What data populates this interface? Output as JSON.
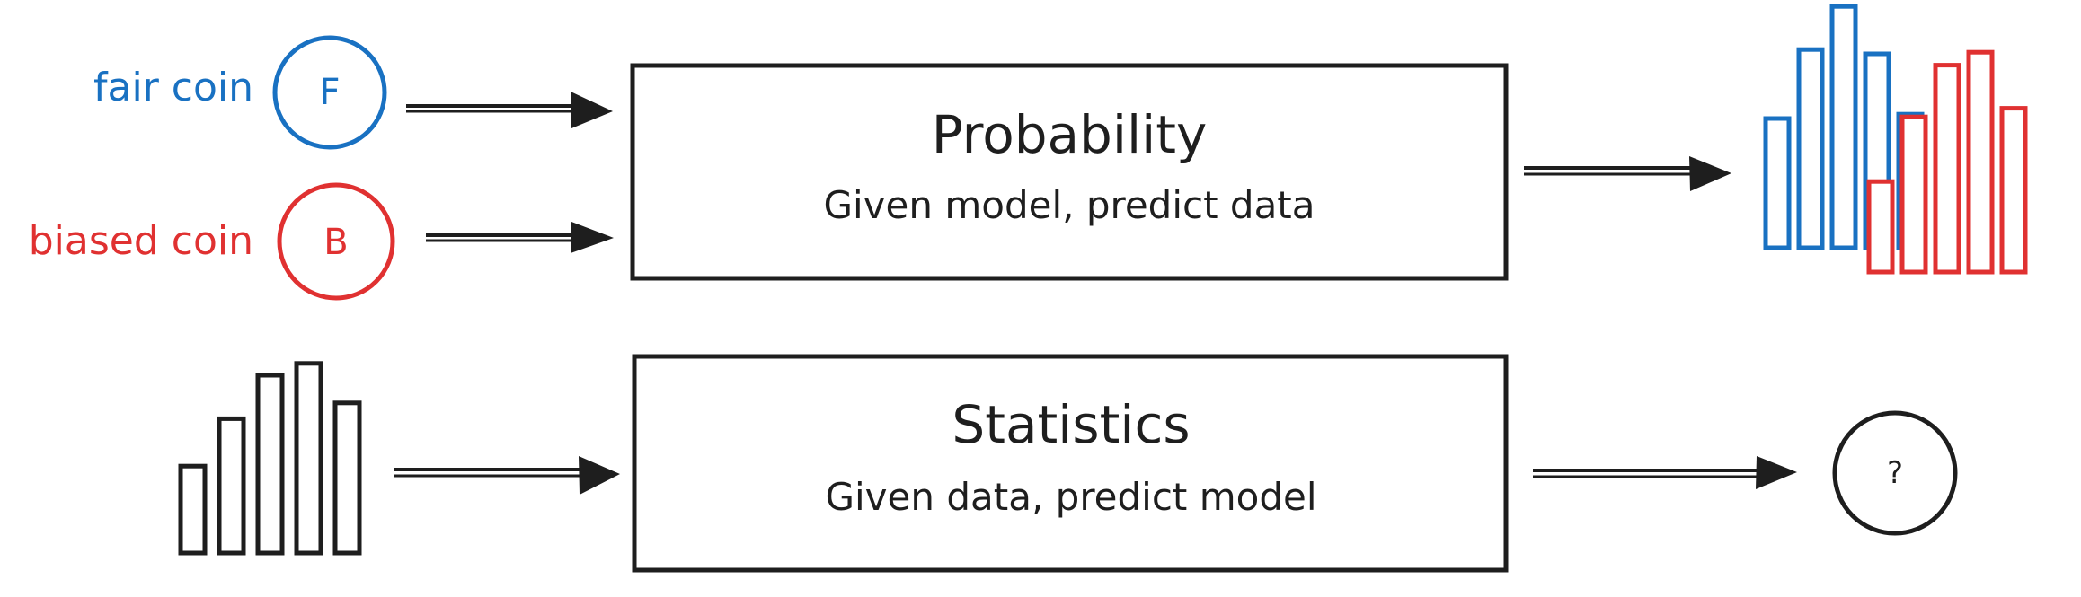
{
  "colors": {
    "fair": "#1971c2",
    "biased": "#e03131",
    "ink": "#1e1e1e"
  },
  "inputs": {
    "fair_label": "fair coin",
    "fair_symbol": "F",
    "biased_label": "biased coin",
    "biased_symbol": "B"
  },
  "probability_box": {
    "title": "Probability",
    "subtitle": "Given model, predict data"
  },
  "statistics_box": {
    "title": "Statistics",
    "subtitle": "Given data, predict model"
  },
  "output": {
    "unknown_symbol": "?"
  },
  "histograms": {
    "fair_heights": [
      3,
      4.6,
      5.6,
      4.5,
      3.1
    ],
    "biased_heights": [
      2.1,
      3.6,
      4.8,
      5.1,
      3.8
    ],
    "data_heights": [
      2.2,
      3.4,
      4.5,
      4.8,
      3.8
    ]
  }
}
